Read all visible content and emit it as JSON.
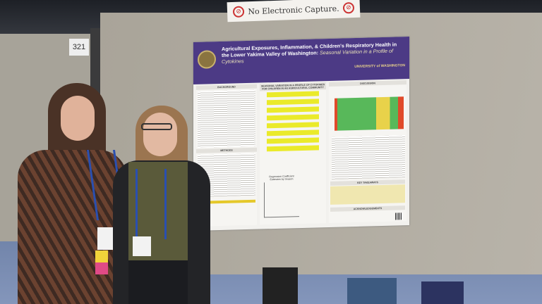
{
  "sign": {
    "text": "No Electronic Capture.",
    "icon": "no-camera-icon"
  },
  "booth_number": "321",
  "poster": {
    "title": "Agricultural Exposures, Inflammation, & Children's Respiratory Health in the Lower Yakima Valley of Washington:",
    "subtitle": "Seasonal Variation in a Profile of Cytokines",
    "institution": "UNIVERSITY of WASHINGTON",
    "sections": {
      "background": "BACKGROUND",
      "methods": "METHODS",
      "center": "SEASONAL VARIATION IN A PROFILE OF CYTOKINES FOR CHILDREN IN AN AGRICULTURAL COMMUNITY",
      "regression": "Regression Coefficient Estimates by Season",
      "discussion": "DISCUSSION",
      "takeaways": "KEY TAKEAWAYS",
      "acknowledgements": "ACKNOWLEDGEMENTS"
    },
    "colors": {
      "banner": "#4c3a85",
      "highlight": "#eaea2a"
    }
  }
}
